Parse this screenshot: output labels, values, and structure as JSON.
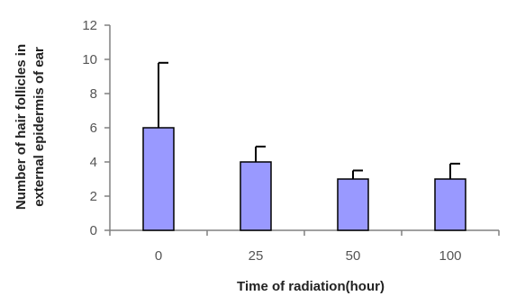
{
  "chart_data": {
    "type": "bar",
    "categories": [
      "0",
      "25",
      "50",
      "100"
    ],
    "values": [
      6,
      4,
      3,
      3
    ],
    "error_upper": [
      3.8,
      0.9,
      0.5,
      0.9
    ],
    "xlabel": "Time of radiation(hour)",
    "ylabel_lines": [
      "Number of hair follicles in",
      "external epidermis of ear"
    ],
    "ylim": [
      0,
      12
    ],
    "yticks": [
      "0",
      "2",
      "4",
      "6",
      "8",
      "10",
      "12"
    ],
    "grid": false,
    "legend": "none",
    "colors": {
      "bar_fill": "#9999ff",
      "bar_stroke": "#000000",
      "axis": "#808080",
      "error_bar": "#000000"
    }
  }
}
